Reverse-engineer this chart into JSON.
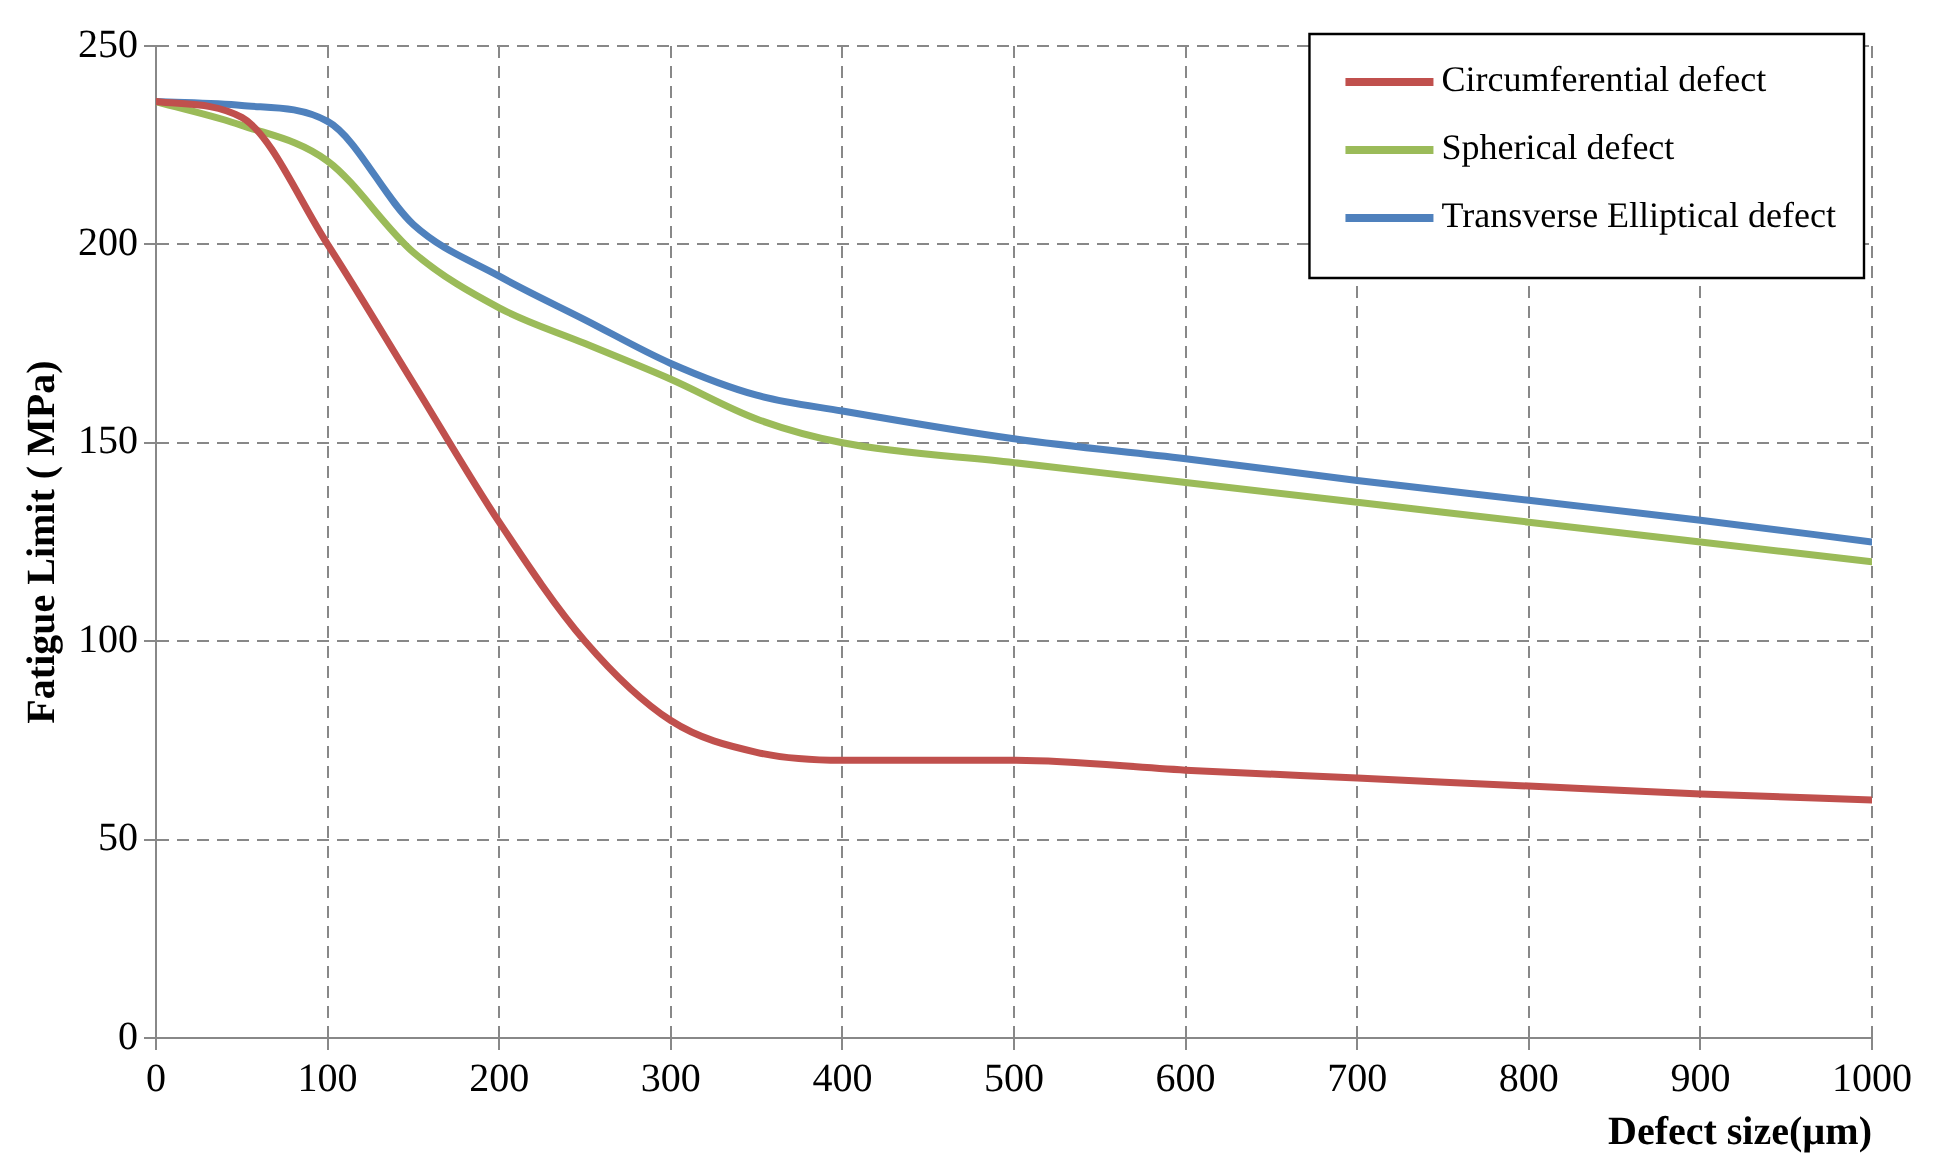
{
  "chart_data": {
    "type": "line",
    "xlabel": "Defect size(µm)",
    "ylabel": "Fatigue Limit ( MPa)",
    "x": [
      0,
      50,
      100,
      150,
      200,
      250,
      300,
      350,
      400,
      500,
      600,
      700,
      800,
      900,
      1000
    ],
    "series": [
      {
        "name": "Circumferential defect",
        "color": "#c0504d",
        "values": [
          236,
          232,
          200,
          165,
          130,
          100,
          80,
          72,
          70,
          70,
          67.5,
          65.5,
          63.5,
          61.5,
          60
        ]
      },
      {
        "name": "Spherical defect",
        "color": "#9bbb59",
        "values": [
          236,
          230,
          221,
          198,
          184,
          175,
          166,
          156,
          150,
          145,
          140,
          135,
          130,
          125,
          120
        ]
      },
      {
        "name": "Transverse Elliptical defect",
        "color": "#4f81bd",
        "values": [
          236,
          235,
          231,
          205,
          192,
          181,
          170,
          162,
          158,
          151,
          146,
          140.5,
          135.5,
          130.5,
          125
        ]
      }
    ],
    "xlim": [
      0,
      1000
    ],
    "xticks": [
      0,
      100,
      200,
      300,
      400,
      500,
      600,
      700,
      800,
      900,
      1000
    ],
    "ylim": [
      0,
      250
    ],
    "yticks": [
      0,
      50,
      100,
      150,
      200,
      250
    ],
    "grid": true,
    "legend": "top right",
    "marker": "none",
    "line_style": "solid"
  }
}
